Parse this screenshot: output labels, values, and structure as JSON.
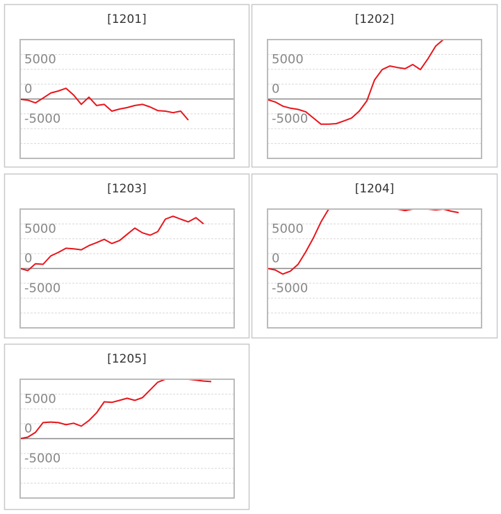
{
  "chart_data": [
    {
      "type": "line",
      "title": "[1201]",
      "color": "#e8141b",
      "xlim": [
        0,
        28
      ],
      "ylim": [
        -10000,
        10000
      ],
      "yticks": [
        5000,
        0,
        -5000
      ],
      "minor_yticks": [
        -7500,
        -2500,
        2500,
        7500
      ],
      "grid": true,
      "values": [
        -50,
        -200,
        -650,
        150,
        1000,
        1350,
        1800,
        650,
        -900,
        300,
        -1100,
        -900,
        -2050,
        -1700,
        -1450,
        -1100,
        -900,
        -1350,
        -1950,
        -2050,
        -2300,
        -2050,
        -3550
      ]
    },
    {
      "type": "line",
      "title": "[1202]",
      "color": "#e8141b",
      "xlim": [
        0,
        28
      ],
      "ylim": [
        -10000,
        10000
      ],
      "yticks": [
        5000,
        0,
        -5000
      ],
      "minor_yticks": [
        -7500,
        -2500,
        2500,
        7500
      ],
      "grid": true,
      "values": [
        -100,
        -500,
        -1200,
        -1550,
        -1750,
        -2150,
        -3200,
        -4250,
        -4250,
        -4150,
        -3700,
        -3200,
        -2050,
        -300,
        3200,
        4950,
        5550,
        5300,
        5100,
        5800,
        4950,
        6800,
        8900,
        10000,
        10000,
        10000
      ]
    },
    {
      "type": "line",
      "title": "[1203]",
      "color": "#e8141b",
      "xlim": [
        0,
        28
      ],
      "ylim": [
        -10000,
        10000
      ],
      "yticks": [
        5000,
        0,
        -5000
      ],
      "minor_yticks": [
        -7500,
        -2500,
        2500,
        7500
      ],
      "grid": true,
      "values": [
        0,
        -350,
        800,
        700,
        2100,
        2700,
        3400,
        3300,
        3150,
        3850,
        4350,
        4900,
        4200,
        4700,
        5750,
        6800,
        6000,
        5600,
        6200,
        8300,
        8800,
        8300,
        7850,
        8550,
        7500
      ]
    },
    {
      "type": "line",
      "title": "[1204]",
      "color": "#e8141b",
      "xlim": [
        0,
        28
      ],
      "ylim": [
        -10000,
        10000
      ],
      "yticks": [
        5000,
        0,
        -5000
      ],
      "minor_yticks": [
        -7500,
        -2500,
        2500,
        7500
      ],
      "grid": true,
      "values": [
        0,
        -250,
        -950,
        -450,
        700,
        2800,
        5150,
        7850,
        10000,
        10000,
        10000,
        10000,
        10000,
        10000,
        10000,
        10000,
        10000,
        10000,
        9750,
        10000,
        10000,
        10000,
        9850,
        10000,
        9650,
        9400
      ]
    },
    {
      "type": "line",
      "title": "[1205]",
      "color": "#e8141b",
      "xlim": [
        0,
        28
      ],
      "ylim": [
        -10000,
        10000
      ],
      "yticks": [
        5000,
        0,
        -5000
      ],
      "minor_yticks": [
        -7500,
        -2500,
        2500,
        7500
      ],
      "grid": true,
      "values": [
        0,
        250,
        1050,
        2700,
        2800,
        2700,
        2350,
        2600,
        2100,
        3050,
        4350,
        6200,
        6100,
        6450,
        6800,
        6450,
        6900,
        8200,
        9500,
        10000,
        10000,
        10000,
        10000,
        9850,
        9700,
        9600
      ]
    }
  ]
}
